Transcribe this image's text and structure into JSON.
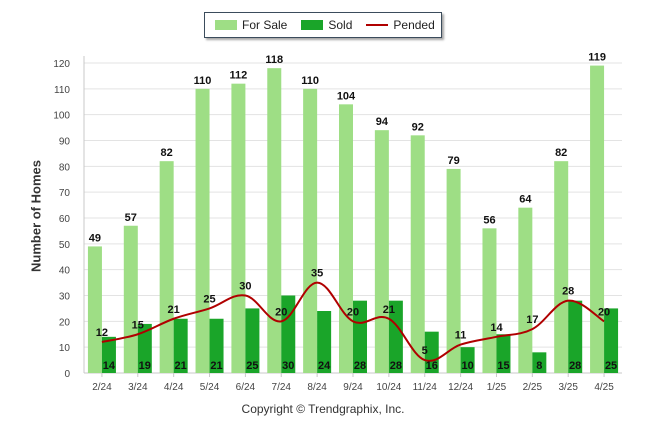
{
  "chart_data": {
    "type": "bar",
    "title": "",
    "xlabel": "",
    "ylabel": "Number of Homes",
    "ylim": [
      0,
      120
    ],
    "yticks": [
      0,
      10,
      20,
      30,
      40,
      50,
      60,
      70,
      80,
      90,
      100,
      110,
      120
    ],
    "grid": true,
    "legend_position": "top-center",
    "categories": [
      "2/24",
      "3/24",
      "4/24",
      "5/24",
      "6/24",
      "7/24",
      "8/24",
      "9/24",
      "10/24",
      "11/24",
      "12/24",
      "1/25",
      "2/25",
      "3/25",
      "4/25"
    ],
    "series": [
      {
        "name": "For Sale",
        "kind": "bar",
        "color": "#9ede85",
        "values": [
          49,
          57,
          82,
          110,
          112,
          118,
          110,
          104,
          94,
          92,
          79,
          56,
          64,
          82,
          119
        ]
      },
      {
        "name": "Sold",
        "kind": "bar",
        "color": "#1aa529",
        "values": [
          14,
          19,
          21,
          21,
          25,
          30,
          24,
          28,
          28,
          16,
          10,
          15,
          8,
          28,
          25
        ]
      },
      {
        "name": "Pended",
        "kind": "line",
        "color": "#b00000",
        "values": [
          12,
          15,
          21,
          25,
          30,
          20,
          35,
          20,
          21,
          5,
          11,
          14,
          17,
          28,
          20
        ]
      }
    ]
  },
  "legend": {
    "for_sale": "For Sale",
    "sold": "Sold",
    "pended": "Pended"
  },
  "footer": {
    "copyright": "Copyright © Trendgraphix, Inc."
  }
}
